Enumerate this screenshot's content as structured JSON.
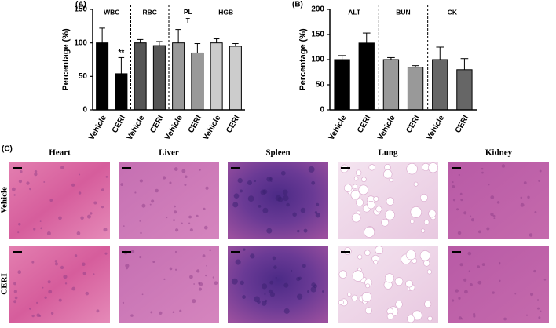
{
  "chart_data": [
    {
      "type": "bar",
      "panel": "(A)",
      "ylabel": "Percentage (%)",
      "groups": [
        "WBC",
        "RBC",
        "PL T",
        "HGB"
      ],
      "categories": [
        "Vehicle",
        "CERI",
        "Vehicle",
        "CERI",
        "Vehicle",
        "CERI",
        "Vehicle",
        "CERI"
      ],
      "values": [
        100,
        54,
        100,
        96,
        100,
        85,
        100,
        95
      ],
      "errors": [
        22,
        24,
        5,
        6,
        20,
        14,
        6,
        4
      ],
      "colors": [
        "#000000",
        "#000000",
        "#555555",
        "#555555",
        "#999999",
        "#999999",
        "#cccccc",
        "#cccccc"
      ],
      "annotations": [
        {
          "text": "**",
          "x": 1
        }
      ],
      "ylim": [
        0,
        150
      ],
      "yticks": [
        0,
        50,
        100,
        150
      ]
    },
    {
      "type": "bar",
      "panel": "(B)",
      "ylabel": "Percentage (%)",
      "groups": [
        "ALT",
        "BUN",
        "CK"
      ],
      "categories": [
        "Vehicle",
        "CERI",
        "Vehicle",
        "CERI",
        "Vehicle",
        "CERI"
      ],
      "values": [
        100,
        133,
        100,
        85,
        100,
        80
      ],
      "errors": [
        8,
        20,
        4,
        3,
        25,
        22
      ],
      "colors": [
        "#000000",
        "#000000",
        "#999999",
        "#999999",
        "#666666",
        "#666666"
      ],
      "annotations": [],
      "ylim": [
        0,
        200
      ],
      "yticks": [
        0,
        50,
        100,
        150,
        200
      ]
    }
  ],
  "panel_c": {
    "label": "(C)",
    "columns": [
      "Heart",
      "Liver",
      "Spleen",
      "Lung",
      "Kidney"
    ],
    "rows": [
      "Vehicle",
      "CERI"
    ]
  }
}
